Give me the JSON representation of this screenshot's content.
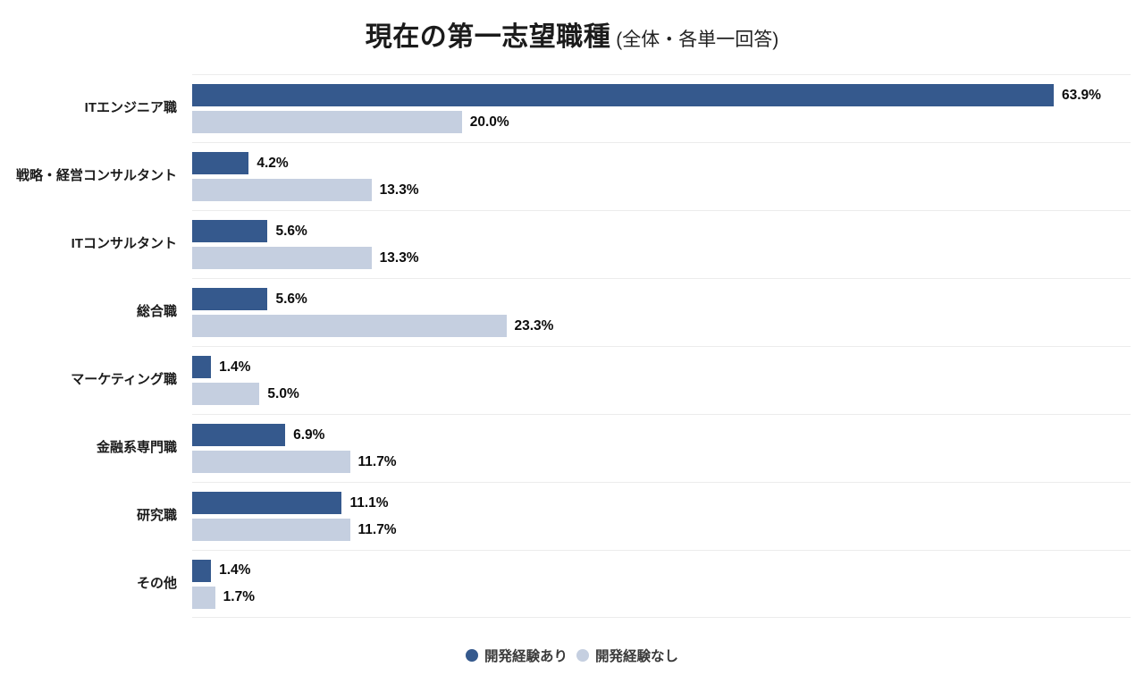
{
  "chart_data": {
    "type": "bar",
    "orientation": "horizontal",
    "title": "現在の第一志望職種",
    "subtitle": "(全体・各単一回答)",
    "categories": [
      "ITエンジニア職",
      "戦略・経営コンサルタント",
      "ITコンサルタント",
      "総合職",
      "マーケティング職",
      "金融系専門職",
      "研究職",
      "その他"
    ],
    "series": [
      {
        "name": "開発経験あり",
        "color": "#35598D",
        "values": [
          63.9,
          4.2,
          5.6,
          5.6,
          1.4,
          6.9,
          11.1,
          1.4
        ]
      },
      {
        "name": "開発経験なし",
        "color": "#C5CFE0",
        "values": [
          20.0,
          13.3,
          13.3,
          23.3,
          5.0,
          11.7,
          11.7,
          1.7
        ]
      }
    ],
    "value_suffix": "%",
    "xlim": [
      0,
      69.6
    ],
    "grid": "row-separators",
    "separator_color": "#ececec",
    "legend_position": "bottom",
    "background": "#ffffff"
  }
}
